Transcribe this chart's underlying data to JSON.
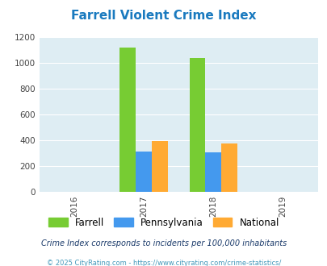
{
  "title": "Farrell Violent Crime Index",
  "title_color": "#1a7abf",
  "years": [
    2016,
    2017,
    2018,
    2019
  ],
  "bar_data": {
    "2017": {
      "Farrell": 1120,
      "Pennsylvania": 312,
      "National": 394
    },
    "2018": {
      "Farrell": 1036,
      "Pennsylvania": 306,
      "National": 376
    }
  },
  "colors": {
    "Farrell": "#77cc33",
    "Pennsylvania": "#4499ee",
    "National": "#ffaa33"
  },
  "ylim": [
    0,
    1200
  ],
  "yticks": [
    0,
    200,
    400,
    600,
    800,
    1000,
    1200
  ],
  "xlim": [
    2015.5,
    2019.5
  ],
  "plot_bg": "#deedf3",
  "grid_color": "#ffffff",
  "bar_width": 0.23,
  "legend_labels": [
    "Farrell",
    "Pennsylvania",
    "National"
  ],
  "footnote1": "Crime Index corresponds to incidents per 100,000 inhabitants",
  "footnote2": "© 2025 CityRating.com - https://www.cityrating.com/crime-statistics/",
  "footnote1_color": "#1a3a6a",
  "footnote2_color": "#4499bb"
}
